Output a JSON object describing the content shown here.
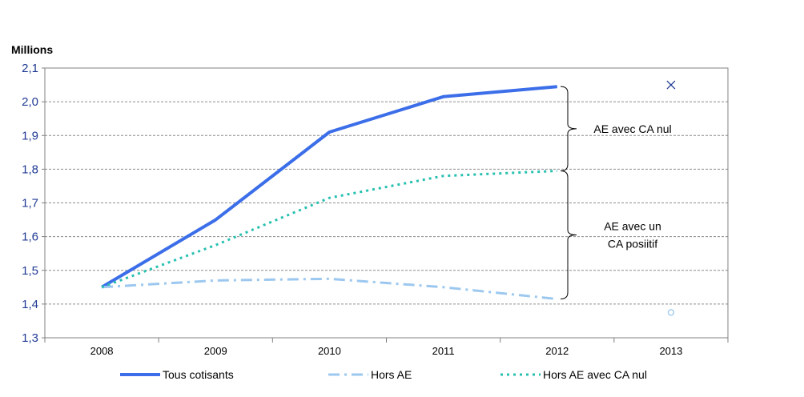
{
  "chart_data": {
    "type": "line",
    "ylabel": "Millions",
    "ylim": [
      1.3,
      2.1
    ],
    "yticks": [
      "1,3",
      "1,4",
      "1,5",
      "1,6",
      "1,7",
      "1,8",
      "1,9",
      "2,0",
      "2,1"
    ],
    "categories": [
      "2008",
      "2009",
      "2010",
      "2011",
      "2012",
      "2013"
    ],
    "grid": true,
    "legend_position": "bottom",
    "series": [
      {
        "name": "Tous cotisants",
        "color": "#3b6ee8",
        "style": "solid",
        "values": [
          1.45,
          1.65,
          1.91,
          2.015,
          2.045,
          null
        ]
      },
      {
        "name": "Hors AE",
        "color": "#9cc8ef",
        "style": "dash-dot",
        "values": [
          1.45,
          1.47,
          1.475,
          1.45,
          1.415,
          null
        ]
      },
      {
        "name": "Hors AE avec CA nul",
        "color": "#27c0b0",
        "style": "dotted",
        "values": [
          1.45,
          1.575,
          1.715,
          1.78,
          1.795,
          null
        ]
      }
    ],
    "points_2013": [
      {
        "series": "Tous cotisants",
        "value": 2.05,
        "marker": "x",
        "color": "#1f3a93"
      },
      {
        "series": "Hors AE",
        "value": 1.375,
        "marker": "circle",
        "color": "#9cc8ef"
      }
    ],
    "annotations": [
      {
        "lines": [
          "AE avec CA nul"
        ],
        "from": 1.795,
        "to": 2.045
      },
      {
        "lines": [
          "AE avec un",
          "CA posiitif"
        ],
        "from": 1.415,
        "to": 1.795
      }
    ]
  }
}
